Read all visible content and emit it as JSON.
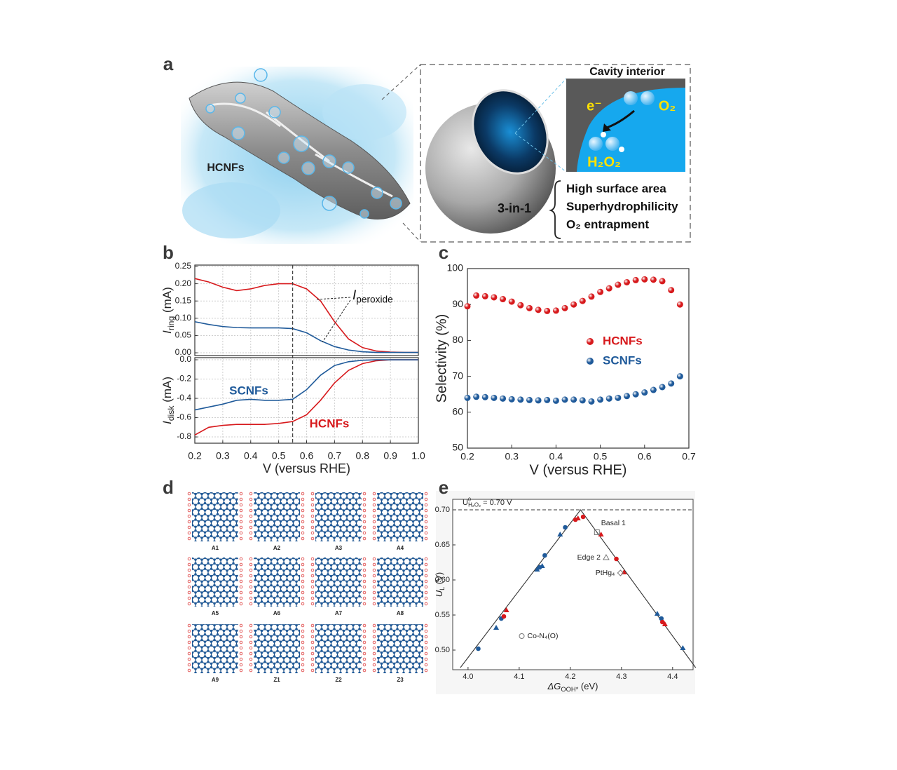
{
  "panel_labels": [
    "a",
    "b",
    "c",
    "d",
    "e"
  ],
  "panel_a": {
    "fiber_label": "HCNFs",
    "inset_title": "Cavity interior",
    "electron": "e⁻",
    "oxygen": "O₂",
    "product": "H₂O₂",
    "summary": "3-in-1",
    "features": [
      "High surface area",
      "Superhydrophilicity",
      "O₂ entrapment"
    ]
  },
  "panel_d": {
    "structures": [
      "A1",
      "A2",
      "A3",
      "A4",
      "A5",
      "A6",
      "A7",
      "A8",
      "A9",
      "Z1",
      "Z2",
      "Z3"
    ]
  },
  "chart_data": [
    {
      "type": "line",
      "xlabel": "V (versus RHE)",
      "x": [
        0.2,
        0.25,
        0.3,
        0.35,
        0.4,
        0.45,
        0.5,
        0.55,
        0.6,
        0.65,
        0.7,
        0.75,
        0.8,
        0.85,
        0.9,
        0.95,
        1.0
      ],
      "xlim": [
        0.2,
        1.0
      ],
      "xticks": [
        0.2,
        0.3,
        0.4,
        0.5,
        0.6,
        0.7,
        0.8,
        0.9,
        {
          "value": 1.0,
          "label": "1.0"
        }
      ],
      "vline": 0.55,
      "grid": true,
      "subplots": [
        {
          "ylabel": {
            "main": "I",
            "sub": "ring",
            "unit": " (mA)"
          },
          "ylim": [
            -0.008,
            0.254
          ],
          "yticks": [
            {
              "value": 0,
              "label": "0.00"
            },
            0.05,
            {
              "value": 0.1,
              "label": "0.10"
            },
            0.15,
            {
              "value": 0.2,
              "label": "0.20"
            },
            0.25
          ],
          "annotation": {
            "main": "I",
            "sub": "peroxide"
          },
          "series": [
            {
              "name": "HCNFs",
              "color": "#d7191c",
              "values": [
                0.215,
                0.205,
                0.19,
                0.18,
                0.185,
                0.195,
                0.2,
                0.2,
                0.185,
                0.15,
                0.09,
                0.04,
                0.015,
                0.005,
                0.002,
                0.001,
                0.001
              ]
            },
            {
              "name": "SCNFs",
              "color": "#1f5a9a",
              "values": [
                0.09,
                0.082,
                0.076,
                0.073,
                0.072,
                0.072,
                0.072,
                0.07,
                0.058,
                0.035,
                0.018,
                0.008,
                0.003,
                0.001,
                0.001,
                0.001,
                0.001
              ]
            }
          ]
        },
        {
          "ylabel": {
            "main": "I",
            "sub": "disk",
            "unit": " (mA)"
          },
          "ylim": [
            -0.865,
            0.022
          ],
          "yticks": [
            {
              "value": 0,
              "label": "0.0"
            },
            -0.2,
            -0.4,
            -0.6,
            -0.8
          ],
          "series": [
            {
              "name": "HCNFs",
              "color": "#d7191c",
              "values": [
                -0.78,
                -0.7,
                -0.68,
                -0.67,
                -0.67,
                -0.67,
                -0.66,
                -0.64,
                -0.57,
                -0.42,
                -0.24,
                -0.11,
                -0.04,
                -0.01,
                0,
                0,
                0
              ]
            },
            {
              "name": "SCNFs",
              "color": "#1f5a9a",
              "values": [
                -0.52,
                -0.49,
                -0.46,
                -0.42,
                -0.41,
                -0.42,
                -0.42,
                -0.41,
                -0.31,
                -0.16,
                -0.06,
                -0.02,
                -0.005,
                0,
                0,
                0,
                0
              ]
            }
          ]
        }
      ]
    },
    {
      "type": "scatter",
      "xlabel": "V (versus RHE)",
      "ylabel": "Selectivity (%)",
      "xlim": [
        0.2,
        0.7
      ],
      "ylim": [
        50,
        100
      ],
      "xticks": [
        0.2,
        0.3,
        0.4,
        0.5,
        0.6,
        0.7
      ],
      "yticks": [
        50,
        60,
        70,
        80,
        90,
        100
      ],
      "x": [
        0.2,
        0.22,
        0.24,
        0.26,
        0.28,
        0.3,
        0.32,
        0.34,
        0.36,
        0.38,
        0.4,
        0.42,
        0.44,
        0.46,
        0.48,
        0.5,
        0.52,
        0.54,
        0.56,
        0.58,
        0.6,
        0.62,
        0.64,
        0.66,
        0.68
      ],
      "series": [
        {
          "name": "HCNFs",
          "color": "#d7191c",
          "values": [
            89.5,
            92.5,
            92.3,
            92,
            91.5,
            90.8,
            89.8,
            89,
            88.5,
            88.2,
            88.3,
            89,
            90,
            91,
            92.2,
            93.5,
            94.5,
            95.5,
            96.2,
            96.8,
            97,
            96.9,
            96.5,
            94,
            90
          ]
        },
        {
          "name": "SCNFs",
          "color": "#1f5a9a",
          "values": [
            64,
            64.3,
            64.2,
            64,
            63.8,
            63.6,
            63.5,
            63.4,
            63.3,
            63.4,
            63.2,
            63.5,
            63.5,
            63.3,
            63,
            63.5,
            63.8,
            64,
            64.5,
            65,
            65.5,
            66.2,
            67,
            68,
            70
          ]
        }
      ]
    },
    {
      "type": "volcano",
      "xlabel": {
        "main": "ΔG",
        "sub": "OOH*",
        "unit": " (eV)"
      },
      "ylabel": {
        "main": "U",
        "sub": "L",
        "unit": " (V)"
      },
      "xlim": [
        3.97,
        4.44
      ],
      "ylim": [
        0.472,
        0.715
      ],
      "xticks": [
        {
          "value": 4.0,
          "label": "4.0"
        },
        4.1,
        4.2,
        4.3,
        4.4
      ],
      "yticks": [
        {
          "value": 0.5,
          "label": "0.50"
        },
        0.55,
        {
          "value": 0.6,
          "label": "0.60"
        },
        0.65,
        {
          "value": 0.7,
          "label": "0.70"
        }
      ],
      "hline": {
        "value": 0.7,
        "label": {
          "main": "U",
          "sup": "0",
          "sub": "H₂O₂",
          "rest": " = 0.70 V"
        }
      },
      "volcano": {
        "x": [
          3.985,
          4.22,
          4.445
        ],
        "values": [
          0.475,
          0.7,
          0.475
        ]
      },
      "series": [
        {
          "color": "#1f5a9a",
          "x": [
            4.02,
            4.055,
            4.065,
            4.135,
            4.14,
            4.145,
            4.15,
            4.18,
            4.19,
            4.37,
            4.378,
            4.42
          ],
          "values": [
            0.502,
            0.532,
            0.545,
            0.615,
            0.618,
            0.62,
            0.635,
            0.665,
            0.675,
            0.552,
            0.545,
            0.503
          ]
        },
        {
          "color": "#d7191c",
          "x": [
            4.07,
            4.075,
            4.21,
            4.215,
            4.225,
            4.26,
            4.29,
            4.305,
            4.38,
            4.385
          ],
          "values": [
            0.548,
            0.557,
            0.686,
            0.688,
            0.69,
            0.665,
            0.63,
            0.611,
            0.54,
            0.537
          ]
        }
      ],
      "references": [
        {
          "label": "Basal 1",
          "marker": "square",
          "x": 4.252,
          "value": 0.668
        },
        {
          "label": "Edge 2",
          "marker": "triangle",
          "x": 4.27,
          "value": 0.632
        },
        {
          "label": "PtHg₄",
          "marker": "diamond",
          "x": 4.298,
          "value": 0.61
        },
        {
          "label": "Co-N₄(O)",
          "marker": "circle",
          "x": 4.105,
          "value": 0.52
        }
      ]
    }
  ]
}
